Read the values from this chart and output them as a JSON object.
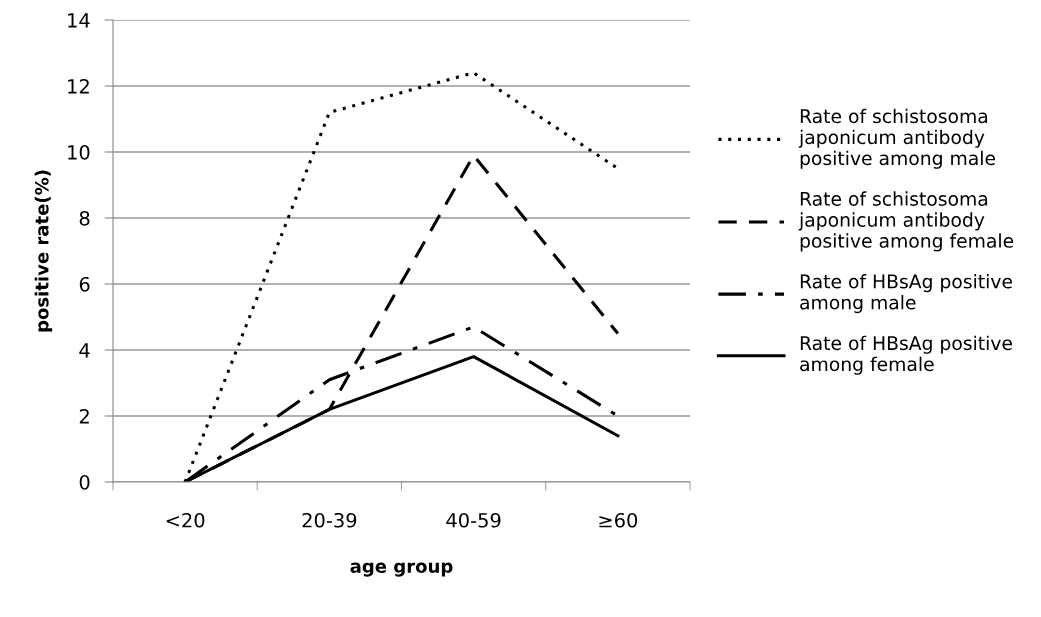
{
  "chart_data": {
    "type": "line",
    "xlabel": "age group",
    "ylabel": "positive rate(%)",
    "categories": [
      "<20",
      "20-39",
      "40-59",
      "≥60"
    ],
    "ylim": [
      0,
      14
    ],
    "yticks": [
      0,
      2,
      4,
      6,
      8,
      10,
      12,
      14
    ],
    "grid": "y",
    "legend": "right",
    "marker": "none",
    "series": [
      {
        "name": "Rate of schistosoma\njaponicum antibody\npositive among male",
        "color": "#000000",
        "line_style": "dotted",
        "values": [
          0,
          11.2,
          12.4,
          9.5
        ]
      },
      {
        "name": "Rate of schistosoma\njaponicum antibody\npositive among female",
        "color": "#000000",
        "line_style": "dashed",
        "values": [
          0,
          2.2,
          9.9,
          4.5
        ]
      },
      {
        "name": "Rate of HBsAg positive\namong male",
        "color": "#000000",
        "line_style": "dashdot",
        "values": [
          0,
          3.1,
          4.7,
          2.0
        ]
      },
      {
        "name": "Rate of HBsAg positive\namong female",
        "color": "#000000",
        "line_style": "solid",
        "values": [
          0,
          2.2,
          3.8,
          1.4
        ]
      }
    ]
  }
}
